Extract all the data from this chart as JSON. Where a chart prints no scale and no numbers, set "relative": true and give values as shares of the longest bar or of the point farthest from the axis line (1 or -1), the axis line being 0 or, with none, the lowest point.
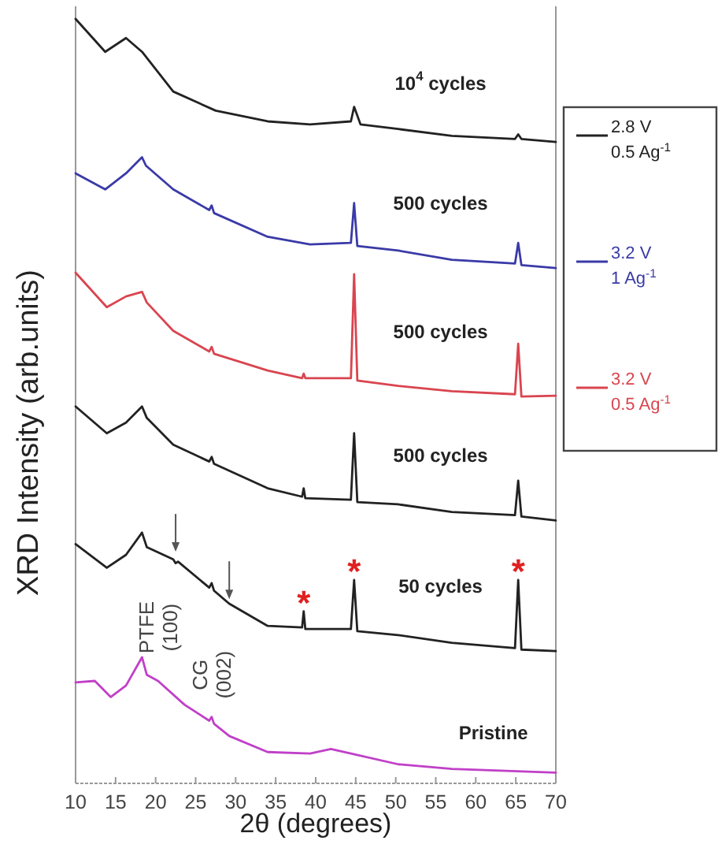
{
  "chart_data": {
    "type": "line",
    "xlabel": "2θ (degrees)",
    "ylabel": "XRD Intensity (arb.units)",
    "xlim": [
      10,
      70
    ],
    "xticks": [
      10,
      15,
      20,
      25,
      30,
      35,
      40,
      45,
      50,
      55,
      60,
      65,
      70
    ],
    "relative": true,
    "legend": "right",
    "series": [
      {
        "name": "2.8 V 0.5 Ag$^{-1}$",
        "color": "#222222",
        "x": [
          10,
          13.7,
          16.3,
          18.3,
          22.2,
          27.5,
          34,
          39.3,
          44.4,
          44.8,
          45.6,
          50.3,
          57,
          64.9,
          65.3,
          65.7,
          70
        ],
        "values": [
          1,
          0.957,
          0.975,
          0.957,
          0.905,
          0.88,
          0.866,
          0.862,
          0.866,
          0.885,
          0.862,
          0.856,
          0.847,
          0.843,
          0.849,
          0.843,
          0.839
        ]
      },
      {
        "name": "3.2 V 1 Ag$^{-1}$",
        "color": "#3a3aa8",
        "x": [
          10,
          13.7,
          16.3,
          18.3,
          18.8,
          22.2,
          26.7,
          27,
          27.3,
          34,
          39.3,
          44.4,
          44.8,
          45.2,
          50.3,
          57,
          64.9,
          65.3,
          65.7,
          70
        ],
        "values": [
          0.798,
          0.777,
          0.798,
          0.819,
          0.808,
          0.777,
          0.75,
          0.756,
          0.746,
          0.715,
          0.705,
          0.707,
          0.759,
          0.703,
          0.697,
          0.685,
          0.68,
          0.707,
          0.678,
          0.674
        ]
      },
      {
        "name": "3.2 V 0.5 Ag$^{-1}$",
        "color": "#d9454f",
        "x": [
          10,
          13.9,
          16.3,
          18.3,
          18.9,
          22.2,
          26.7,
          27,
          27.3,
          34,
          38.3,
          38.5,
          38.7,
          44.4,
          44.8,
          45.2,
          50.3,
          57,
          64.9,
          65.3,
          65.7,
          70
        ],
        "values": [
          0.668,
          0.623,
          0.637,
          0.643,
          0.629,
          0.592,
          0.565,
          0.571,
          0.562,
          0.54,
          0.53,
          0.536,
          0.53,
          0.53,
          0.666,
          0.527,
          0.52,
          0.513,
          0.509,
          0.575,
          0.506,
          0.507
        ]
      },
      {
        "color": "#222222",
        "x": [
          10,
          13.9,
          16.3,
          18.3,
          18.9,
          22.2,
          26.7,
          27,
          27.3,
          34,
          38.3,
          38.5,
          38.7,
          44.4,
          44.8,
          45.2,
          50.3,
          57,
          64.9,
          65.3,
          65.7,
          70
        ],
        "values": [
          0.493,
          0.458,
          0.472,
          0.493,
          0.478,
          0.443,
          0.421,
          0.427,
          0.418,
          0.386,
          0.375,
          0.386,
          0.373,
          0.371,
          0.458,
          0.368,
          0.365,
          0.355,
          0.351,
          0.396,
          0.349,
          0.344
        ]
      },
      {
        "color": "#222222",
        "x": [
          10,
          13.9,
          16.3,
          18.3,
          18.9,
          22.2,
          22.5,
          22.8,
          26.7,
          27,
          27.3,
          29.2,
          34,
          38.3,
          38.5,
          38.7,
          44.4,
          44.8,
          45.2,
          50.3,
          57,
          64.9,
          65.3,
          65.7,
          70
        ],
        "values": [
          0.313,
          0.282,
          0.299,
          0.328,
          0.309,
          0.293,
          0.288,
          0.29,
          0.256,
          0.262,
          0.252,
          0.235,
          0.206,
          0.204,
          0.225,
          0.202,
          0.202,
          0.266,
          0.199,
          0.194,
          0.184,
          0.177,
          0.266,
          0.175,
          0.173
        ]
      },
      {
        "color": "#c040c8",
        "x": [
          10,
          12.4,
          14.4,
          16.3,
          18.3,
          18.9,
          20.3,
          23.6,
          26.7,
          27,
          27.3,
          29.2,
          34,
          39.3,
          41.9,
          44.4,
          50.3,
          57,
          70
        ],
        "values": [
          0.132,
          0.134,
          0.113,
          0.128,
          0.165,
          0.142,
          0.134,
          0.103,
          0.082,
          0.087,
          0.078,
          0.062,
          0.041,
          0.039,
          0.045,
          0.039,
          0.025,
          0.019,
          0.014
        ]
      }
    ],
    "annotations": [
      "10$^{4}$ cycles",
      "500 cycles",
      "500 cycles",
      "500 cycles",
      "50 cycles",
      "Pristine",
      {
        "text": "PTFE\n(100)",
        "x": 22.5,
        "y": 0.303
      },
      {
        "text": "CG\n(002)",
        "x": 29.2,
        "y": 0.241
      },
      "*",
      "*",
      "*"
    ]
  }
}
